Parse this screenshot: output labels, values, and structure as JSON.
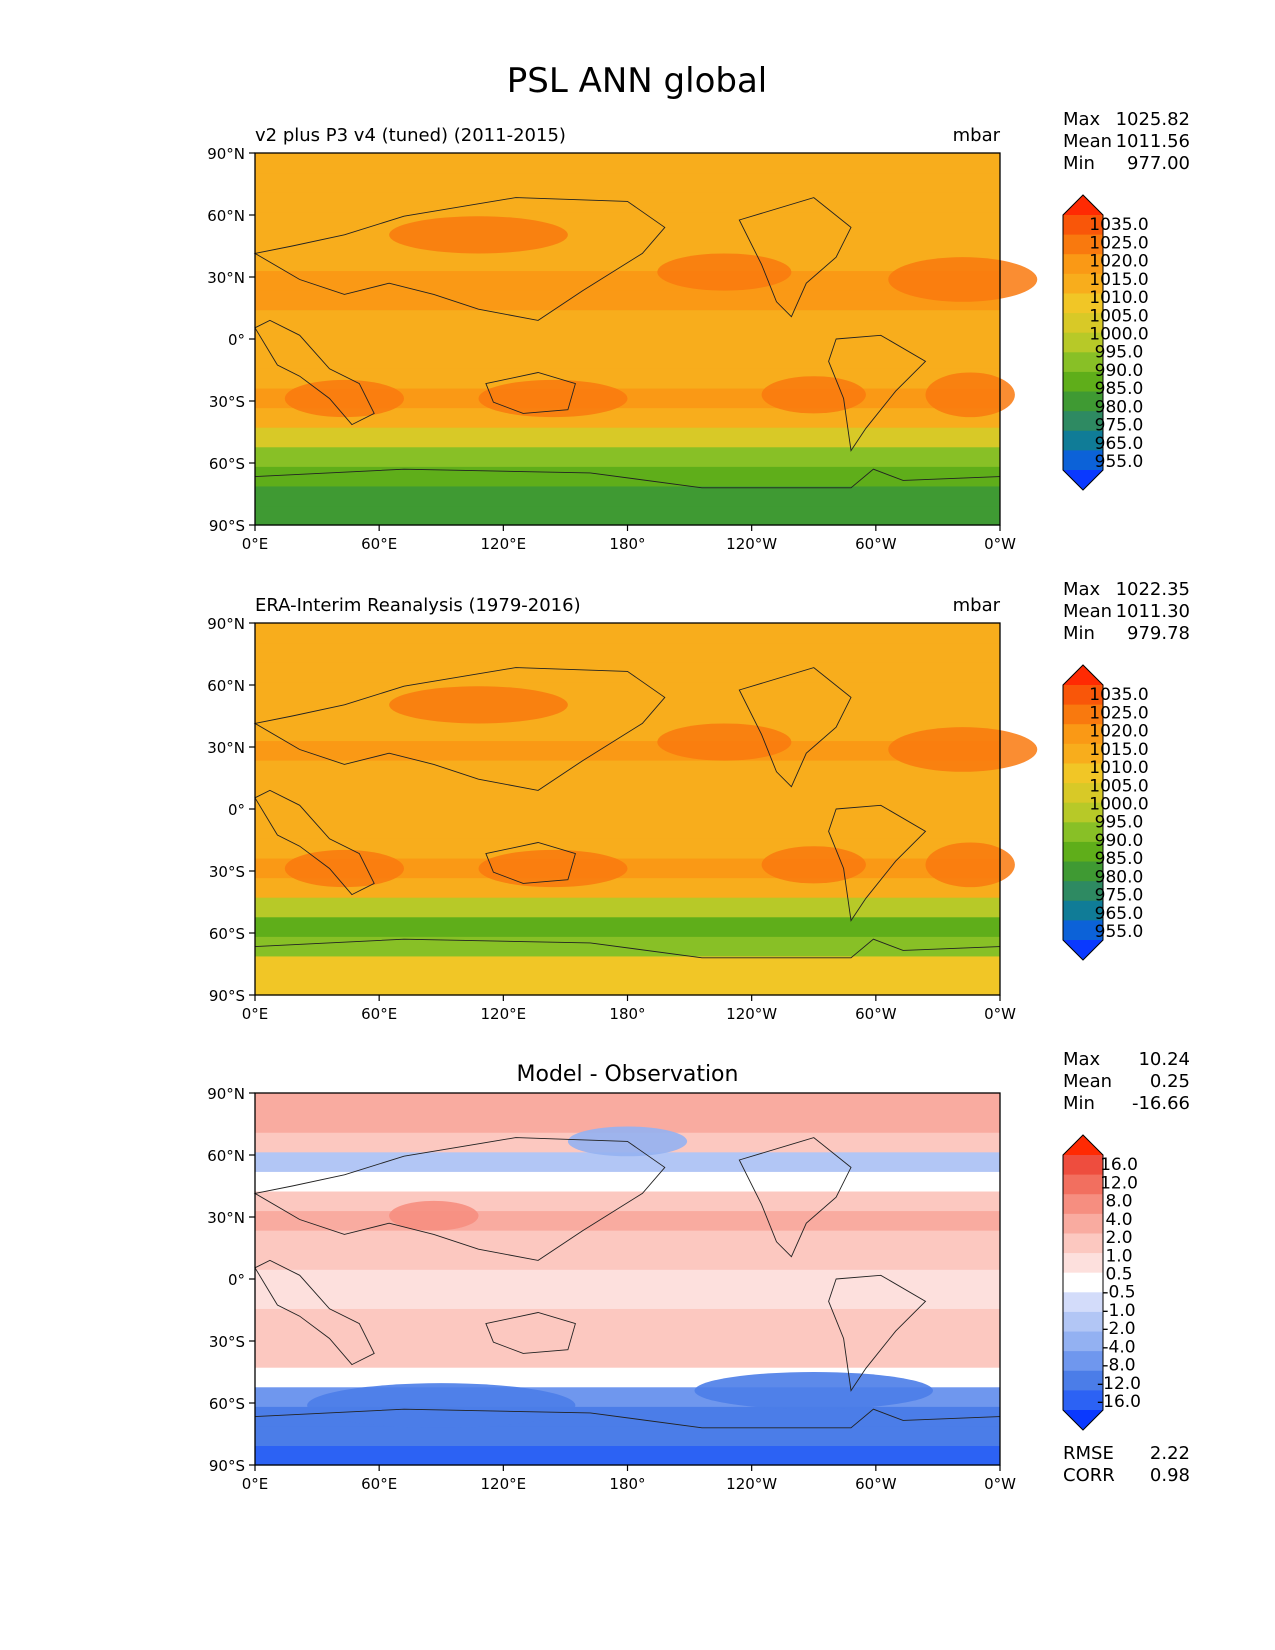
{
  "title": "PSL ANN global",
  "panels": [
    {
      "name": "test",
      "left_title": "v2 plus P3 v4 (tuned) (2011-2015)",
      "center_title": "",
      "units": "mbar",
      "stats": [
        {
          "label": "Max",
          "value": "1025.82"
        },
        {
          "label": "Mean",
          "value": "1011.56"
        },
        {
          "label": "Min",
          "value": "977.00"
        }
      ],
      "colorbar": {
        "colors": [
          "#0a39ff",
          "#0c62d8",
          "#107c97",
          "#2e8a62",
          "#3f9a33",
          "#5fae1a",
          "#88c026",
          "#b7c928",
          "#d8c927",
          "#f1c626",
          "#f8ad1c",
          "#fa9915",
          "#f9790e",
          "#f95609",
          "#ff2a03"
        ],
        "labels": [
          "1035.0",
          "1025.0",
          "1020.0",
          "1015.0",
          "1010.0",
          "1005.0",
          "1000.0",
          "995.0",
          "990.0",
          "985.0",
          "980.0",
          "975.0",
          "965.0",
          "955.0"
        ]
      },
      "field_profile": [
        980,
        982,
        985,
        993,
        1000,
        1010,
        1016,
        1014,
        1012,
        1012,
        1013,
        1015,
        1016,
        1014,
        1012,
        1013,
        1012,
        1011,
        1011
      ]
    },
    {
      "name": "reference",
      "left_title": "ERA-Interim Reanalysis (1979-2016)",
      "center_title": "",
      "units": "mbar",
      "stats": [
        {
          "label": "Max",
          "value": "1022.35"
        },
        {
          "label": "Mean",
          "value": "1011.30"
        },
        {
          "label": "Min",
          "value": "979.78"
        }
      ],
      "colorbar": {
        "colors": [
          "#0a39ff",
          "#0c62d8",
          "#107c97",
          "#2e8a62",
          "#3f9a33",
          "#5fae1a",
          "#88c026",
          "#b7c928",
          "#d8c927",
          "#f1c626",
          "#f8ad1c",
          "#fa9915",
          "#f9790e",
          "#f95609",
          "#ff2a03"
        ],
        "labels": [
          "1035.0",
          "1025.0",
          "1020.0",
          "1015.0",
          "1010.0",
          "1005.0",
          "1000.0",
          "995.0",
          "990.0",
          "985.0",
          "980.0",
          "975.0",
          "965.0",
          "955.0"
        ]
      },
      "field_profile": [
        1008,
        1005,
        992,
        988,
        998,
        1010,
        1016,
        1014,
        1012,
        1011,
        1012,
        1014,
        1016,
        1014,
        1012,
        1013,
        1012,
        1011,
        1011
      ]
    },
    {
      "name": "difference",
      "left_title": "",
      "center_title": "Model - Observation",
      "units": "",
      "stats": [
        {
          "label": "Max",
          "value": "10.24"
        },
        {
          "label": "Mean",
          "value": "0.25"
        },
        {
          "label": "Min",
          "value": "-16.66"
        }
      ],
      "colorbar": {
        "colors": [
          "#0a39ff",
          "#2c62f4",
          "#4b7de8",
          "#6f97ee",
          "#93b1f2",
          "#b2c6f5",
          "#d3dcfa",
          "#ffffff",
          "#fde0dd",
          "#fcc8c0",
          "#f9aba0",
          "#f68e80",
          "#f26f5f",
          "#ee4d3e",
          "#ff2a03"
        ],
        "labels": [
          "16.0",
          "12.0",
          "8.0",
          "4.0",
          "2.0",
          "1.0",
          "0.5",
          "-0.5",
          "-1.0",
          "-2.0",
          "-4.0",
          "-8.0",
          "-12.0",
          "-16.0"
        ]
      },
      "field_profile": [
        -14,
        -12,
        -11,
        -6,
        0.3,
        1.2,
        1.5,
        1.2,
        0.8,
        0.8,
        1.0,
        1.5,
        2.2,
        1.6,
        0.2,
        -1.5,
        1.5,
        2.0,
        3.5
      ],
      "metrics": [
        {
          "label": "RMSE",
          "value": "2.22"
        },
        {
          "label": "CORR",
          "value": "0.98"
        }
      ]
    }
  ],
  "axes": {
    "x_ticks": [
      "0°E",
      "60°E",
      "120°E",
      "180°",
      "120°W",
      "60°W",
      "0°W"
    ],
    "y_ticks": [
      "90°N",
      "60°N",
      "30°N",
      "0°",
      "30°S",
      "60°S",
      "90°S"
    ]
  },
  "chart_data": [
    {
      "type": "heatmap",
      "title": "v2 plus P3 v4 (tuned) (2011-2015)",
      "units": "mbar",
      "xlabel": "",
      "ylabel": "",
      "x_range": [
        0,
        360
      ],
      "y_range": [
        -90,
        90
      ],
      "levels": [
        955,
        965,
        975,
        980,
        985,
        990,
        995,
        1000,
        1005,
        1010,
        1015,
        1020,
        1025,
        1035
      ],
      "stats": {
        "max": 1025.82,
        "mean": 1011.56,
        "min": 977.0
      }
    },
    {
      "type": "heatmap",
      "title": "ERA-Interim Reanalysis (1979-2016)",
      "units": "mbar",
      "xlabel": "",
      "ylabel": "",
      "x_range": [
        0,
        360
      ],
      "y_range": [
        -90,
        90
      ],
      "levels": [
        955,
        965,
        975,
        980,
        985,
        990,
        995,
        1000,
        1005,
        1010,
        1015,
        1020,
        1025,
        1035
      ],
      "stats": {
        "max": 1022.35,
        "mean": 1011.3,
        "min": 979.78
      }
    },
    {
      "type": "heatmap",
      "title": "Model - Observation",
      "units": "",
      "xlabel": "",
      "ylabel": "",
      "x_range": [
        0,
        360
      ],
      "y_range": [
        -90,
        90
      ],
      "levels": [
        -16,
        -12,
        -8,
        -4,
        -2,
        -1,
        -0.5,
        0.5,
        1,
        2,
        4,
        8,
        12,
        16
      ],
      "stats": {
        "max": 10.24,
        "mean": 0.25,
        "min": -16.66,
        "rmse": 2.22,
        "corr": 0.98
      }
    }
  ]
}
